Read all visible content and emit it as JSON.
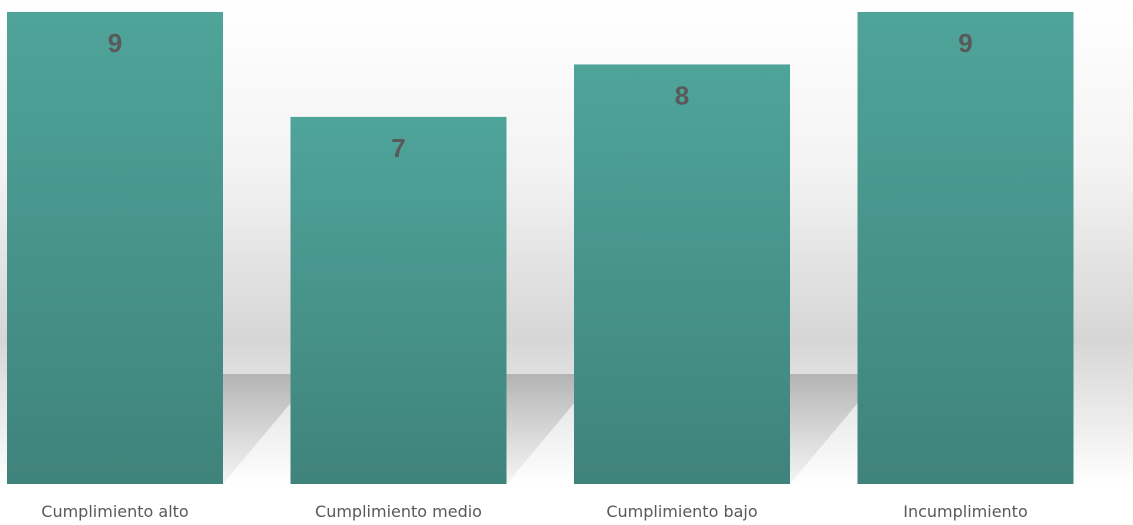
{
  "chart_data": {
    "type": "bar",
    "categories": [
      "Cumplimiento alto",
      "Cumplimiento medio",
      "Cumplimiento bajo",
      "Incumplimiento"
    ],
    "values": [
      9,
      7,
      8,
      9
    ],
    "title": "",
    "xlabel": "",
    "ylabel": "",
    "ylim": [
      0,
      9
    ],
    "grid": false,
    "legend": "none",
    "data_labels": true,
    "colors": {
      "bar_top": "#4fa49a",
      "bar_bottom": "#3f837b",
      "label": "#595959",
      "background_top": "#ffffff",
      "background_mid": "#d9d9d9"
    }
  }
}
